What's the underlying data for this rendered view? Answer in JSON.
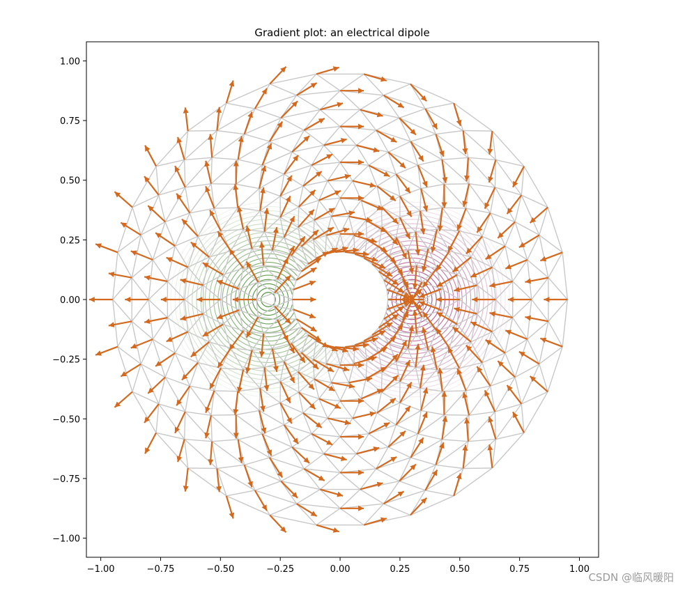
{
  "chart_data": {
    "type": "gradient-field",
    "title": "Gradient plot: an electrical dipole",
    "xlabel": "",
    "ylabel": "",
    "xlim": [
      -1.06,
      1.08
    ],
    "ylim": [
      -1.08,
      1.08
    ],
    "x_ticks": [
      -1.0,
      -0.75,
      -0.5,
      -0.25,
      0.0,
      0.25,
      0.5,
      0.75,
      1.0
    ],
    "y_ticks": [
      -1.0,
      -0.75,
      -0.5,
      -0.25,
      0.0,
      0.25,
      0.5,
      0.75,
      1.0
    ],
    "x_tick_labels": [
      "−1.00",
      "−0.75",
      "−0.50",
      "−0.25",
      "0.00",
      "0.25",
      "0.50",
      "0.75",
      "1.00"
    ],
    "y_tick_labels": [
      "−1.00",
      "−0.75",
      "−0.50",
      "−0.25",
      "0.00",
      "0.25",
      "0.50",
      "0.75",
      "1.00"
    ],
    "mesh": {
      "min_radius": 0.2,
      "max_radius": 0.95,
      "n_radii": 11,
      "n_angles": 30
    },
    "dipole": {
      "charge_left": {
        "x": -0.3,
        "y": 0.0,
        "sign": "negative"
      },
      "charge_right": {
        "x": 0.3,
        "y": 0.0,
        "sign": "positive"
      }
    },
    "grid": false,
    "legend": "none"
  },
  "colors": {
    "mesh": "#c8c8c8",
    "arrows": "#d2691e",
    "contour_negative": "#2e7d12",
    "contour_positive": "#9b1268",
    "axes": "#000000"
  },
  "watermark": "CSDN @临风暖阳"
}
